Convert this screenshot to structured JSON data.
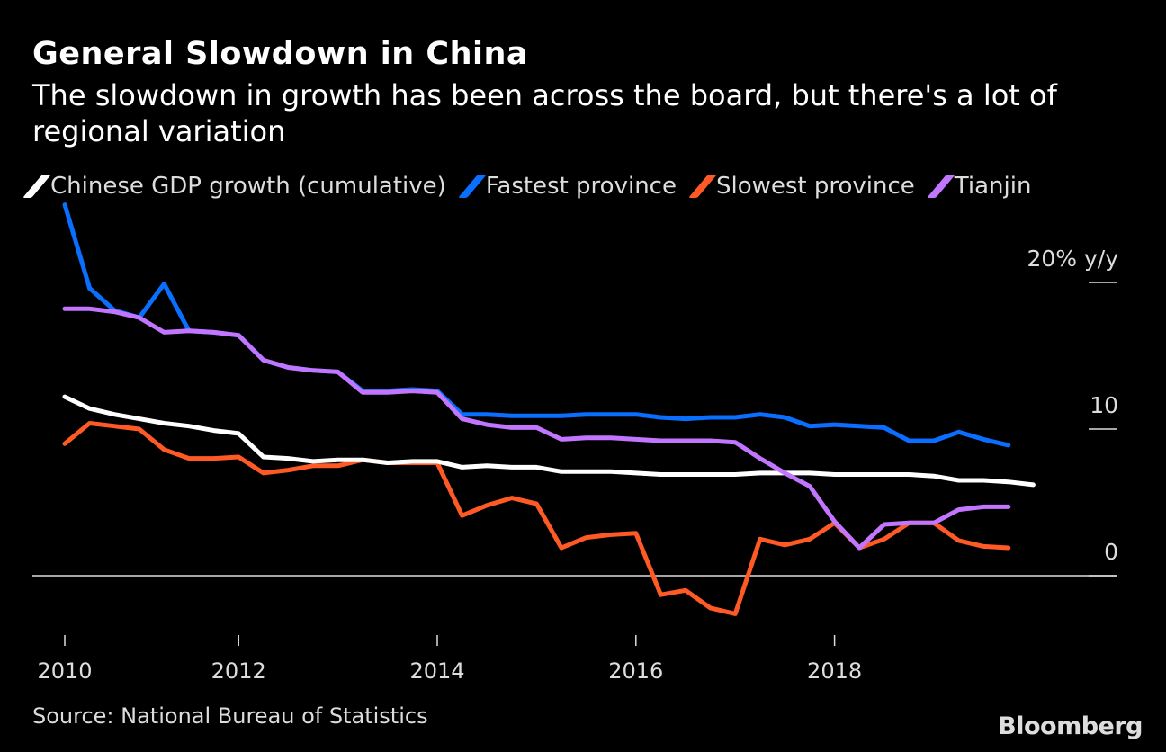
{
  "chart_data": {
    "type": "line",
    "title": "General Slowdown in China",
    "subtitle": "The slowdown in growth has been across the board, but there's a lot of regional variation",
    "ylabel": "20% y/y",
    "ylim": [
      -4.5,
      25.5
    ],
    "yticks": [
      {
        "value": 20,
        "label": "20% y/y"
      },
      {
        "value": 10,
        "label": "10"
      },
      {
        "value": 0,
        "label": "0"
      }
    ],
    "xticks": [
      {
        "value": 2010,
        "label": "2010"
      },
      {
        "value": 2012,
        "label": "2012"
      },
      {
        "value": 2014,
        "label": "2014"
      },
      {
        "value": 2016,
        "label": "2016"
      },
      {
        "value": 2018,
        "label": "2018"
      }
    ],
    "x_start": "2010 Q1",
    "frequency": "quarterly",
    "grid": false,
    "legend_position": "top",
    "series": [
      {
        "name": "Chinese GDP growth (cumulative)",
        "color": "#ffffff",
        "values": [
          12.2,
          11.4,
          11.0,
          10.7,
          10.4,
          10.2,
          9.9,
          9.7,
          8.1,
          8.0,
          7.8,
          7.9,
          7.9,
          7.7,
          7.8,
          7.8,
          7.4,
          7.5,
          7.4,
          7.4,
          7.1,
          7.1,
          7.1,
          7.0,
          6.9,
          6.9,
          6.9,
          6.9,
          7.0,
          7.0,
          7.0,
          6.9,
          6.9,
          6.9,
          6.9,
          6.8,
          6.5,
          6.5,
          6.4,
          6.2
        ]
      },
      {
        "name": "Fastest province",
        "color": "#0a6eff",
        "values": [
          25.3,
          19.6,
          18.1,
          17.6,
          19.9,
          16.7,
          16.6,
          16.4,
          14.7,
          14.2,
          14.0,
          13.9,
          12.6,
          12.6,
          12.7,
          12.6,
          11.0,
          11.0,
          10.9,
          10.9,
          10.9,
          11.0,
          11.0,
          11.0,
          10.8,
          10.7,
          10.8,
          10.8,
          11.0,
          10.8,
          10.2,
          10.3,
          10.2,
          10.1,
          9.2,
          9.2,
          9.8,
          9.3,
          8.9
        ]
      },
      {
        "name": "Slowest province",
        "color": "#ff5a26",
        "values": [
          9.0,
          10.4,
          10.2,
          10.0,
          8.6,
          8.0,
          8.0,
          8.1,
          7.0,
          7.2,
          7.5,
          7.5,
          7.9,
          7.7,
          7.7,
          7.7,
          4.1,
          4.8,
          5.3,
          4.9,
          1.9,
          2.6,
          2.8,
          2.9,
          -1.3,
          -1.0,
          -2.2,
          -2.6,
          2.5,
          2.1,
          2.5,
          3.6,
          1.9,
          2.5,
          3.6,
          3.6,
          2.4,
          2.0,
          1.9
        ]
      },
      {
        "name": "Tianjin",
        "color": "#c275ff",
        "values": [
          18.2,
          18.2,
          18.0,
          17.6,
          16.6,
          16.7,
          16.6,
          16.4,
          14.7,
          14.2,
          14.0,
          13.9,
          12.5,
          12.5,
          12.6,
          12.5,
          10.7,
          10.3,
          10.1,
          10.1,
          9.3,
          9.4,
          9.4,
          9.3,
          9.2,
          9.2,
          9.2,
          9.1,
          8.0,
          7.0,
          6.1,
          3.7,
          1.9,
          3.5,
          3.6,
          3.6,
          4.5,
          4.7,
          4.7
        ]
      }
    ]
  },
  "source": "Source: National Bureau of Statistics",
  "logo": "Bloomberg"
}
